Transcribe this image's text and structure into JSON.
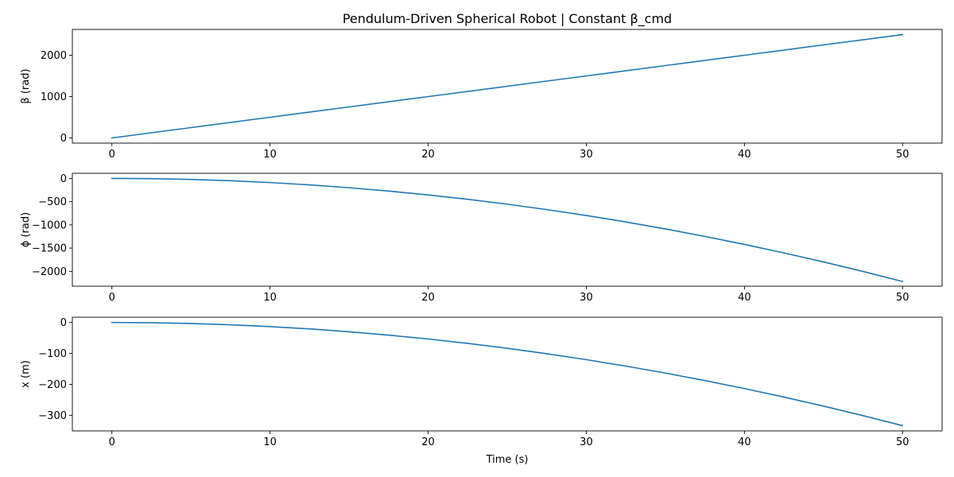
{
  "chart_data": [
    {
      "type": "line",
      "title": "Pendulum-Driven Spherical Robot | Constant β_cmd",
      "xlabel": "",
      "ylabel": "β (rad)",
      "xlim": [
        -2.5,
        52.5
      ],
      "ylim": [
        -125,
        2625
      ],
      "xticks": [
        0,
        10,
        20,
        30,
        40,
        50
      ],
      "yticks": [
        0,
        1000,
        2000
      ],
      "grid": false,
      "series": [
        {
          "color": "#1f77b4",
          "x": [
            0,
            5,
            10,
            15,
            20,
            25,
            30,
            35,
            40,
            45,
            50
          ],
          "y": [
            0,
            250,
            500,
            750,
            1000,
            1250,
            1500,
            1750,
            2000,
            2250,
            2500
          ]
        }
      ]
    },
    {
      "type": "line",
      "title": "",
      "xlabel": "",
      "ylabel": "ϕ (rad)",
      "xlim": [
        -2.5,
        52.5
      ],
      "ylim": [
        -2320,
        110
      ],
      "xticks": [
        0,
        10,
        20,
        30,
        40,
        50
      ],
      "yticks": [
        0,
        -500,
        -1000,
        -1500,
        -2000
      ],
      "grid": false,
      "series": [
        {
          "color": "#1f77b4",
          "x": [
            0,
            2.5,
            5,
            7.5,
            10,
            12.5,
            15,
            17.5,
            20,
            22.5,
            25,
            27.5,
            30,
            32.5,
            35,
            37.5,
            40,
            42.5,
            45,
            47.5,
            50
          ],
          "y": [
            0,
            -5,
            -22,
            -50,
            -89,
            -139,
            -200,
            -272,
            -355,
            -449,
            -555,
            -671,
            -798,
            -937,
            -1087,
            -1248,
            -1420,
            -1603,
            -1797,
            -2002,
            -2218
          ]
        }
      ]
    },
    {
      "type": "line",
      "title": "",
      "xlabel": "Time (s)",
      "ylabel": "x (m)",
      "xlim": [
        -2.5,
        52.5
      ],
      "ylim": [
        -350,
        17
      ],
      "xticks": [
        0,
        10,
        20,
        30,
        40,
        50
      ],
      "yticks": [
        0,
        -100,
        -200,
        -300
      ],
      "grid": false,
      "series": [
        {
          "color": "#1f77b4",
          "x": [
            0,
            2.5,
            5,
            7.5,
            10,
            12.5,
            15,
            17.5,
            20,
            22.5,
            25,
            27.5,
            30,
            32.5,
            35,
            37.5,
            40,
            42.5,
            45,
            47.5,
            50
          ],
          "y": [
            0,
            -0.8,
            -3.3,
            -7.5,
            -13.3,
            -20.8,
            -30,
            -40.8,
            -53.3,
            -67.5,
            -83.3,
            -100.8,
            -120,
            -140.8,
            -163.3,
            -187.5,
            -213.3,
            -240.8,
            -270,
            -300.8,
            -333
          ]
        }
      ]
    }
  ]
}
